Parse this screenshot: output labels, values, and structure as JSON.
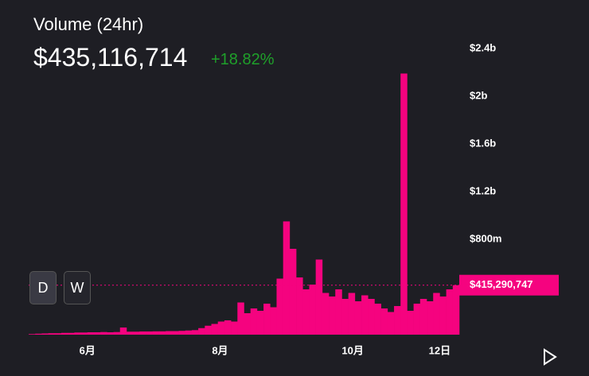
{
  "header": {
    "title": "Volume (24hr)",
    "value": "$435,116,714",
    "change": "+18.82%"
  },
  "buttons": [
    "D",
    "W"
  ],
  "chart_data": {
    "type": "bar",
    "color": "#f5037f",
    "x": [
      0,
      3,
      6,
      9,
      12,
      15,
      18,
      21,
      24,
      27,
      30,
      33,
      36,
      39,
      42,
      45,
      48,
      51,
      54,
      57,
      60,
      63,
      66,
      69,
      72,
      75,
      78,
      81,
      84,
      87,
      90,
      93,
      96,
      99,
      102,
      105,
      108,
      111,
      114,
      117,
      120,
      123,
      126,
      129,
      132,
      135,
      138,
      141,
      144,
      147,
      150,
      153,
      156,
      159,
      162,
      165,
      168,
      171,
      174,
      177,
      180,
      183,
      186,
      189,
      192,
      195
    ],
    "values": [
      5000000,
      8000000,
      10000000,
      12000000,
      12000000,
      15000000,
      15000000,
      18000000,
      18000000,
      20000000,
      20000000,
      22000000,
      20000000,
      22000000,
      60000000,
      25000000,
      25000000,
      27000000,
      27000000,
      28000000,
      28000000,
      30000000,
      30000000,
      32000000,
      35000000,
      38000000,
      55000000,
      75000000,
      90000000,
      110000000,
      120000000,
      110000000,
      270000000,
      180000000,
      220000000,
      200000000,
      260000000,
      230000000,
      470000000,
      950000000,
      720000000,
      480000000,
      380000000,
      420000000,
      630000000,
      350000000,
      320000000,
      380000000,
      300000000,
      350000000,
      280000000,
      330000000,
      300000000,
      260000000,
      220000000,
      190000000,
      240000000,
      2190000000,
      200000000,
      260000000,
      300000000,
      280000000,
      350000000,
      320000000,
      380000000,
      415000000
    ],
    "xlim": [
      0,
      198
    ],
    "xticks": [
      {
        "value": 27,
        "label": "6月"
      },
      {
        "value": 88,
        "label": "8月"
      },
      {
        "value": 149,
        "label": "10月"
      },
      {
        "value": 189,
        "label": "12日"
      }
    ],
    "ylim": [
      0,
      2600000000
    ],
    "yticks": [
      {
        "value": 800000000,
        "label": "$800m"
      },
      {
        "value": 1200000000,
        "label": "$1.2b"
      },
      {
        "value": 1600000000,
        "label": "$1.6b"
      },
      {
        "value": 2000000000,
        "label": "$2b"
      },
      {
        "value": 2400000000,
        "label": "$2.4b"
      }
    ],
    "last_value": 415290747,
    "last_value_label": "$415,290,747"
  }
}
